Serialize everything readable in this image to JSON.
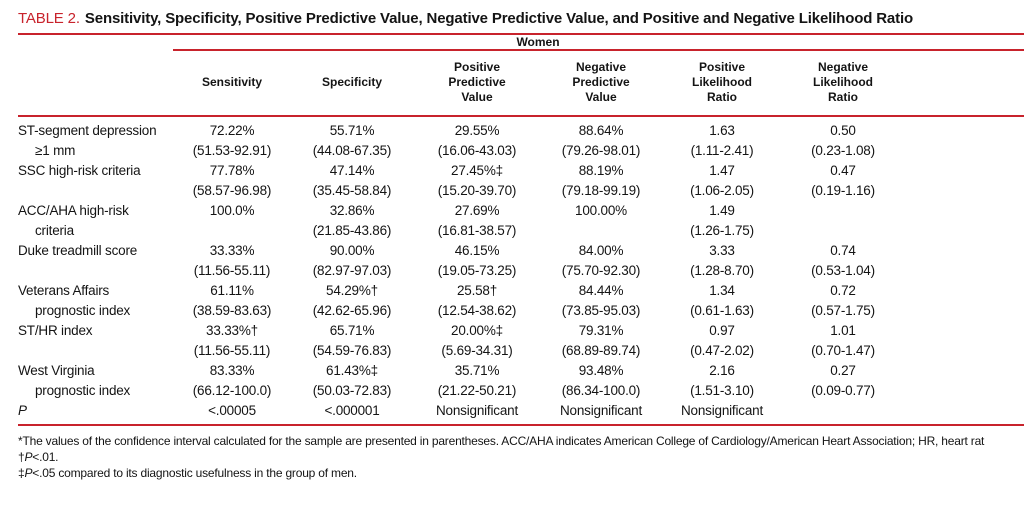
{
  "title": {
    "label": "TABLE 2.",
    "text": "Sensitivity, Specificity, Positive Predictive Value, Negative Predictive Value, and Positive and Negative Likelihood Ratio"
  },
  "group_header": "Women",
  "columns": [
    {
      "id": "sensitivity",
      "lines": [
        "Sensitivity"
      ]
    },
    {
      "id": "specificity",
      "lines": [
        "Specificity"
      ]
    },
    {
      "id": "positive-predictive-value",
      "lines": [
        "Positive",
        "Predictive",
        "Value"
      ]
    },
    {
      "id": "negative-predictive-value",
      "lines": [
        "Negative",
        "Predictive",
        "Value"
      ]
    },
    {
      "id": "positive-likelihood-ratio",
      "lines": [
        "Positive",
        "Likelihood",
        "Ratio"
      ]
    },
    {
      "id": "negative-likelihood-ratio",
      "lines": [
        "Negative",
        "Likelihood",
        "Ratio"
      ]
    }
  ],
  "rows": [
    {
      "id": "st-segment-depression",
      "label": [
        "ST-segment depression",
        "≥1 mm"
      ],
      "cells": [
        [
          "72.22%",
          "(51.53-92.91)"
        ],
        [
          "55.71%",
          "(44.08-67.35)"
        ],
        [
          "29.55%",
          "(16.06-43.03)"
        ],
        [
          "88.64%",
          "(79.26-98.01)"
        ],
        [
          "1.63",
          "(1.11-2.41)"
        ],
        [
          "0.50",
          "(0.23-1.08)"
        ]
      ]
    },
    {
      "id": "ssc-high-risk-criteria",
      "label": [
        "SSC high-risk criteria"
      ],
      "cells": [
        [
          "77.78%",
          "(58.57-96.98)"
        ],
        [
          "47.14%",
          "(35.45-58.84)"
        ],
        [
          "27.45%‡",
          "(15.20-39.70)"
        ],
        [
          "88.19%",
          "(79.18-99.19)"
        ],
        [
          "1.47",
          "(1.06-2.05)"
        ],
        [
          "0.47",
          "(0.19-1.16)"
        ]
      ]
    },
    {
      "id": "acc-aha-high-risk-criteria",
      "label": [
        "ACC/AHA high-risk",
        "criteria"
      ],
      "cells": [
        [
          "100.0%",
          ""
        ],
        [
          "32.86%",
          "(21.85-43.86)"
        ],
        [
          "27.69%",
          "(16.81-38.57)"
        ],
        [
          "100.00%",
          ""
        ],
        [
          "1.49",
          "(1.26-1.75)"
        ],
        [
          "",
          ""
        ]
      ]
    },
    {
      "id": "duke-treadmill-score",
      "label": [
        "Duke treadmill score"
      ],
      "cells": [
        [
          "33.33%",
          "(11.56-55.11)"
        ],
        [
          "90.00%",
          "(82.97-97.03)"
        ],
        [
          "46.15%",
          "(19.05-73.25)"
        ],
        [
          "84.00%",
          "(75.70-92.30)"
        ],
        [
          "3.33",
          "(1.28-8.70)"
        ],
        [
          "0.74",
          "(0.53-1.04)"
        ]
      ]
    },
    {
      "id": "veterans-affairs-prognostic-index",
      "label": [
        "Veterans Affairs",
        "prognostic index"
      ],
      "cells": [
        [
          "61.11%",
          "(38.59-83.63)"
        ],
        [
          "54.29%†",
          "(42.62-65.96)"
        ],
        [
          "25.58†",
          "(12.54-38.62)"
        ],
        [
          "84.44%",
          "(73.85-95.03)"
        ],
        [
          "1.34",
          "(0.61-1.63)"
        ],
        [
          "0.72",
          "(0.57-1.75)"
        ]
      ]
    },
    {
      "id": "st-hr-index",
      "label": [
        "ST/HR index"
      ],
      "cells": [
        [
          "33.33%†",
          "(11.56-55.11)"
        ],
        [
          "65.71%",
          "(54.59-76.83)"
        ],
        [
          "20.00%‡",
          "(5.69-34.31)"
        ],
        [
          "79.31%",
          "(68.89-89.74)"
        ],
        [
          "0.97",
          "(0.47-2.02)"
        ],
        [
          "1.01",
          "(0.70-1.47)"
        ]
      ]
    },
    {
      "id": "west-virginia-prognostic-index",
      "label": [
        "West Virginia",
        "prognostic index"
      ],
      "cells": [
        [
          "83.33%",
          "(66.12-100.0)"
        ],
        [
          "61.43%‡",
          "(50.03-72.83)"
        ],
        [
          "35.71%",
          "(21.22-50.21)"
        ],
        [
          "93.48%",
          "(86.34-100.0)"
        ],
        [
          "2.16",
          "(1.51-3.10)"
        ],
        [
          "0.27",
          "(0.09-0.77)"
        ]
      ]
    },
    {
      "id": "p-value",
      "italic": true,
      "label": [
        "P"
      ],
      "cells": [
        [
          "<.00005",
          ""
        ],
        [
          "<.000001",
          ""
        ],
        [
          "Nonsignificant",
          ""
        ],
        [
          "Nonsignificant",
          ""
        ],
        [
          "Nonsignificant",
          ""
        ],
        [
          "",
          ""
        ]
      ]
    }
  ],
  "footnotes": [
    {
      "segments": [
        {
          "t": "*The values of the confidence interval calculated for the sample are presented in parentheses. ACC/AHA indicates American College of Cardiology/American Heart Association; HR, heart rat",
          "i": false
        }
      ]
    },
    {
      "segments": [
        {
          "t": "†",
          "i": false
        },
        {
          "t": "P",
          "i": true
        },
        {
          "t": "<.01.",
          "i": false
        }
      ]
    },
    {
      "segments": [
        {
          "t": "‡",
          "i": false
        },
        {
          "t": "P",
          "i": true
        },
        {
          "t": "<.05 compared to its diagnostic usefulness in the group of men.",
          "i": false
        }
      ]
    }
  ],
  "colors": {
    "accent_red": "#c8232c",
    "text": "#141414"
  }
}
